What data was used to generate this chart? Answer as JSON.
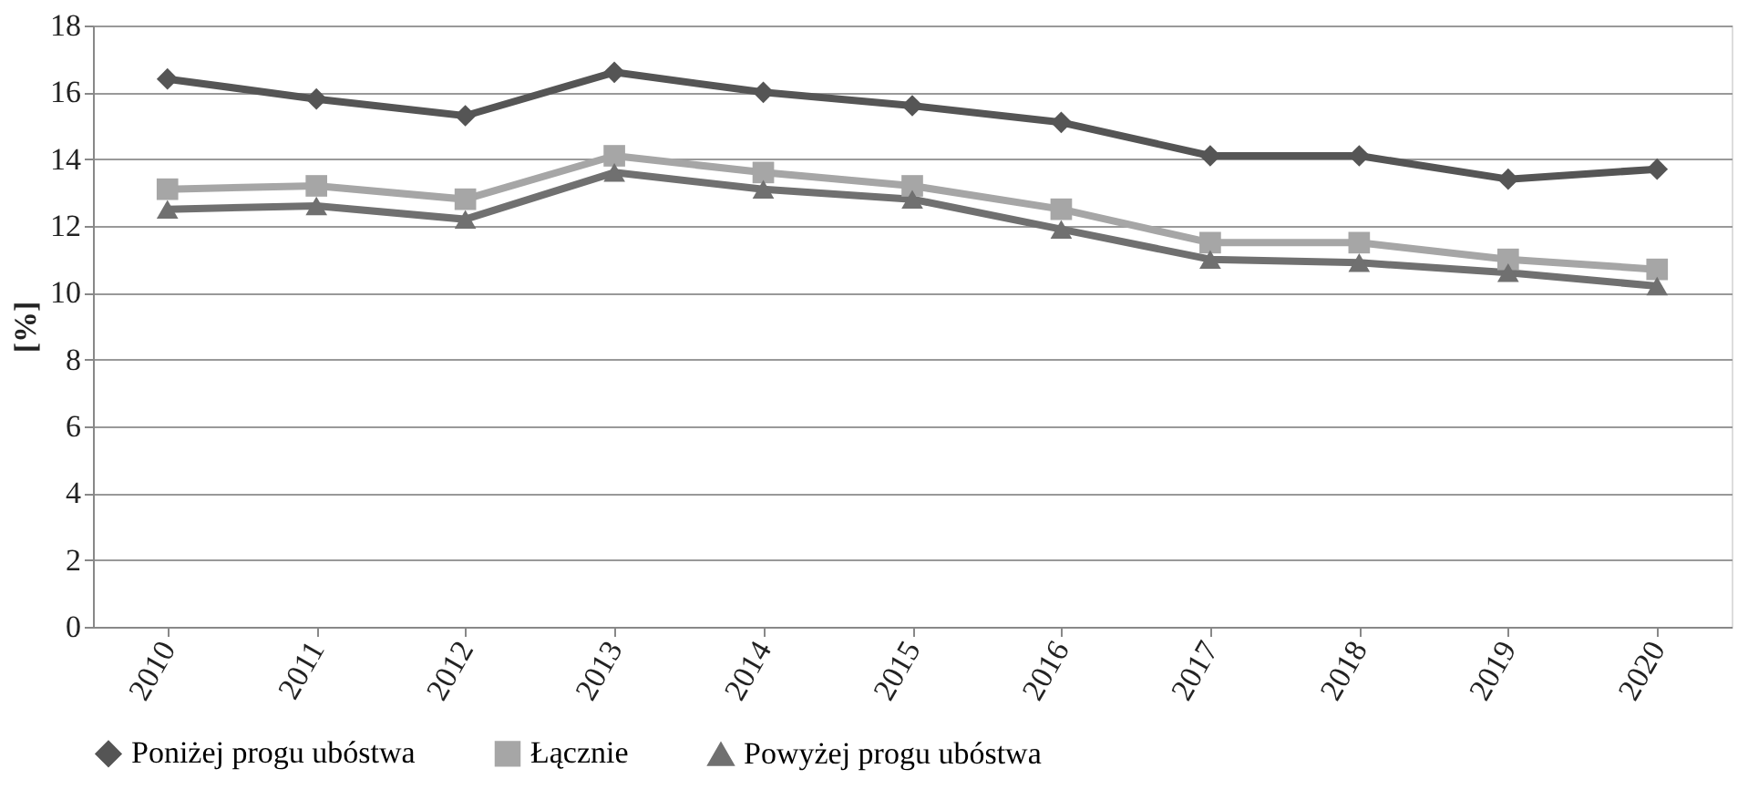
{
  "chart_data": {
    "type": "line",
    "ylabel": "[%]",
    "categories": [
      "2010",
      "2011",
      "2012",
      "2013",
      "2014",
      "2015",
      "2016",
      "2017",
      "2018",
      "2019",
      "2020"
    ],
    "series": [
      {
        "name": "Poniżej progu ubóstwa",
        "color": "#555555",
        "marker": "diamond",
        "values": [
          16.4,
          15.8,
          15.3,
          16.6,
          16.0,
          15.6,
          15.1,
          14.1,
          14.1,
          13.4,
          13.7
        ]
      },
      {
        "name": "Łącznie",
        "color": "#a6a6a6",
        "marker": "square",
        "values": [
          13.1,
          13.2,
          12.8,
          14.1,
          13.6,
          13.2,
          12.5,
          11.5,
          11.5,
          11.0,
          10.7
        ]
      },
      {
        "name": "Powyżej progu ubóstwa",
        "color": "#707070",
        "marker": "triangle",
        "values": [
          12.5,
          12.6,
          12.2,
          13.6,
          13.1,
          12.8,
          11.9,
          11.0,
          10.9,
          10.6,
          10.2
        ]
      }
    ],
    "ylim": [
      0,
      18
    ],
    "yticks": [
      0,
      2,
      4,
      6,
      8,
      10,
      12,
      14,
      16,
      18
    ],
    "grid": "y",
    "legend": "bottom",
    "line_style": "solid"
  }
}
